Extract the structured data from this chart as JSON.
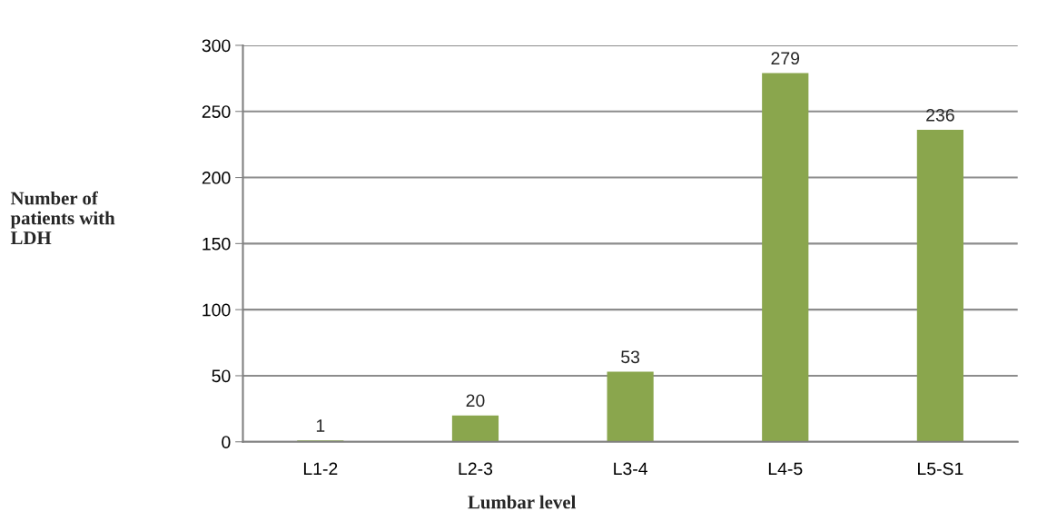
{
  "chart_data": {
    "type": "bar",
    "xlabel": "Lumbar level",
    "ylabel": "Number of\npatients with\nLDH",
    "categories": [
      "L1-2",
      "L2-3",
      "L3-4",
      "L4-5",
      "L5-S1"
    ],
    "values": [
      1,
      20,
      53,
      279,
      236
    ],
    "color": "#8aa64d",
    "ylim": [
      0,
      300
    ],
    "yticks": [
      0,
      50,
      100,
      150,
      200,
      250,
      300
    ],
    "grid": "y",
    "data_labels": true
  }
}
